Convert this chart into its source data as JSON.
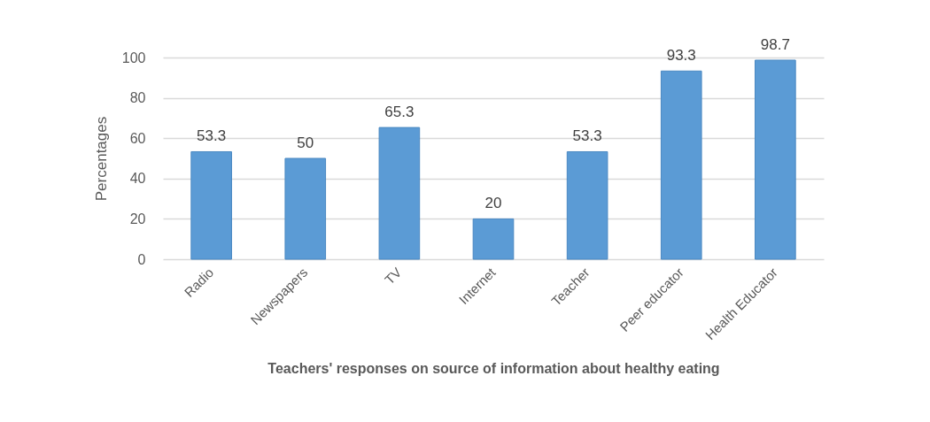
{
  "chart_data": {
    "type": "bar",
    "xlabel": "Teachers' responses on source of information about healthy eating",
    "ylabel": "Percentages",
    "categories": [
      "Radio",
      "Newspapers",
      "TV",
      "Internet",
      "Teacher",
      "Peer educator",
      "Health Educator"
    ],
    "values": [
      53.3,
      50,
      65.3,
      20,
      53.3,
      93.3,
      98.7
    ],
    "color": "#5b9bd5",
    "ylim": [
      0,
      100
    ],
    "yticks": [
      0,
      20,
      40,
      60,
      80,
      100
    ],
    "grid": "y",
    "data_labels": true
  }
}
